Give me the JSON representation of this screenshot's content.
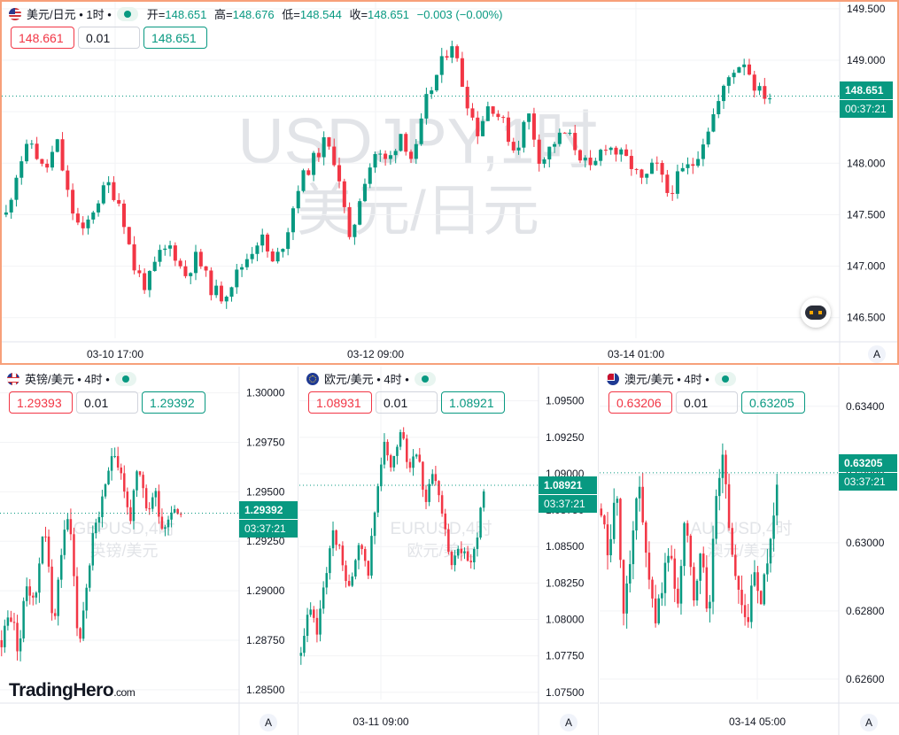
{
  "colors": {
    "up": "#089981",
    "down": "#f23645",
    "panel_border": "#f7a07a"
  },
  "main": {
    "symbol_label": "美元/日元 • 1时 •",
    "ohlc": [
      {
        "k": "开=",
        "v": "148.651"
      },
      {
        "k": "高=",
        "v": "148.676"
      },
      {
        "k": "低=",
        "v": "148.544"
      },
      {
        "k": "收=",
        "v": "148.651"
      }
    ],
    "change": "−0.003 (−0.00%)",
    "sell": "148.661",
    "qty": "0.01",
    "buy": "148.651",
    "watermark_top": "USDJPY,1时",
    "watermark_bottom": "美元/日元",
    "price_tag": "148.651",
    "countdown": "00:37:21",
    "axis_button": "A",
    "chart_data": {
      "type": "candlestick",
      "y_ticks": [
        "149.500",
        "149.000",
        "148.500",
        "148.000",
        "147.500",
        "147.000",
        "146.500"
      ],
      "ylim": [
        146.3,
        149.55
      ],
      "x_ticks": [
        "03-10 17:00",
        "03-12 09:00",
        "03-14 01:00"
      ],
      "last": 148.651,
      "path": [
        147.5,
        148.0,
        148.2,
        147.9,
        148.2,
        147.6,
        147.3,
        147.6,
        147.8,
        147.6,
        147.0,
        146.8,
        147.1,
        147.2,
        146.9,
        147.1,
        146.8,
        146.7,
        146.9,
        147.1,
        147.3,
        147.0,
        147.3,
        147.8,
        148.0,
        148.2,
        148.0,
        147.2,
        147.8,
        148.1,
        148.0,
        148.3,
        148.0,
        148.6,
        148.9,
        149.2,
        148.7,
        148.3,
        148.6,
        148.4,
        148.1,
        148.5,
        148.0,
        148.2,
        148.3,
        148.1,
        147.9,
        148.2,
        148.1,
        148.0,
        147.8,
        148.0,
        147.7,
        147.9,
        148.0,
        148.3,
        148.6,
        148.9,
        149.0,
        148.7,
        148.65
      ]
    }
  },
  "gbp": {
    "symbol_label": "英镑/美元 • 4时 •",
    "sell": "1.29393",
    "qty": "0.01",
    "buy": "1.29392",
    "watermark_top": "GBPUSD,4时",
    "watermark_bottom": "英镑/美元",
    "price_tag": "1.29392",
    "countdown": "03:37:21",
    "axis_button": "A",
    "chart_data": {
      "type": "candlestick",
      "y_ticks": [
        "1.30000",
        "1.29750",
        "1.29500",
        "1.29250",
        "1.29000",
        "1.28750",
        "1.28500"
      ],
      "ylim": [
        1.2845,
        1.3007
      ],
      "x_ticks": [],
      "last": 1.29392,
      "path": [
        1.2875,
        1.289,
        1.287,
        1.2905,
        1.2895,
        1.294,
        1.288,
        1.292,
        1.294,
        1.287,
        1.2905,
        1.2935,
        1.2945,
        1.2975,
        1.296,
        1.2935,
        1.296,
        1.294,
        1.295,
        1.293,
        1.2945,
        1.2939
      ]
    }
  },
  "eur": {
    "symbol_label": "欧元/美元 • 4时 •",
    "sell": "1.08931",
    "qty": "0.01",
    "buy": "1.08921",
    "watermark_top": "EURUSD,4时",
    "watermark_bottom": "欧元/美元",
    "price_tag": "1.08921",
    "countdown": "03:37:21",
    "x_tick": "03-11 09:00",
    "axis_button": "A",
    "chart_data": {
      "type": "candlestick",
      "y_ticks": [
        "1.09500",
        "1.09250",
        "1.09000",
        "1.08750",
        "1.08500",
        "1.08250",
        "1.08000",
        "1.07750",
        "1.07500"
      ],
      "ylim": [
        1.0745,
        1.0965
      ],
      "x_ticks": [
        "03-11 09:00"
      ],
      "last": 1.08921,
      "path": [
        1.0775,
        1.0805,
        1.079,
        1.0835,
        1.086,
        1.084,
        1.082,
        1.085,
        1.083,
        1.088,
        1.092,
        1.09,
        1.0935,
        1.0905,
        1.092,
        1.088,
        1.09,
        1.087,
        1.084,
        1.0855,
        1.0835,
        1.085,
        1.0892
      ]
    }
  },
  "aud": {
    "symbol_label": "澳元/美元 • 4时 •",
    "sell": "0.63206",
    "qty": "0.01",
    "buy": "0.63205",
    "watermark_top": "AUDUSD,4时",
    "watermark_bottom": "澳元/美元",
    "price_tag": "0.63205",
    "countdown": "03:37:21",
    "x_tick": "03-14 05:00",
    "axis_button": "A",
    "chart_data": {
      "type": "candlestick",
      "y_ticks": [
        "0.63400",
        "0.63200",
        "0.63000",
        "0.62800",
        "0.62600"
      ],
      "ylim": [
        0.6254,
        0.6348
      ],
      "x_ticks": [
        "03-14 05:00"
      ],
      "last": 0.63205,
      "path": [
        0.631,
        0.6295,
        0.6315,
        0.628,
        0.63,
        0.632,
        0.629,
        0.6275,
        0.6285,
        0.63,
        0.628,
        0.6305,
        0.6285,
        0.6295,
        0.628,
        0.631,
        0.6325,
        0.63,
        0.6285,
        0.6275,
        0.629,
        0.6283,
        0.63,
        0.632
      ]
    },
    "logo": "TradingHero",
    "logo_suffix": ".com"
  }
}
